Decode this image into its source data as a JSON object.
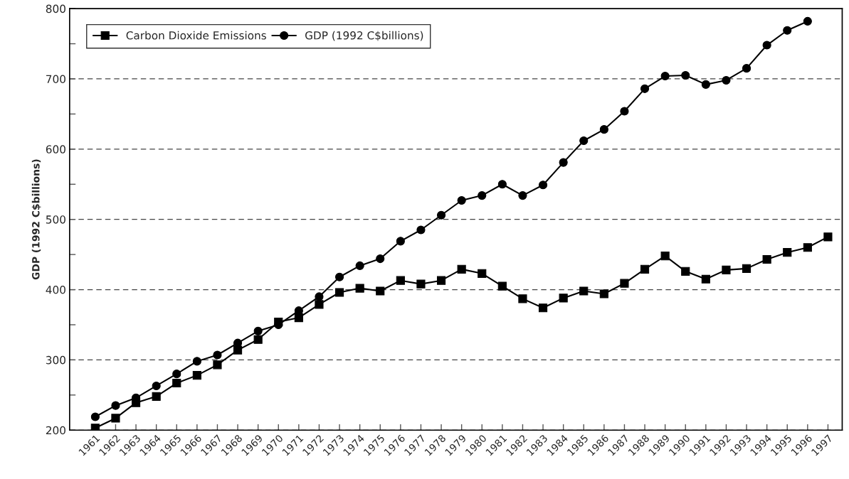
{
  "chart_data": {
    "type": "line",
    "ylabel": "GDP (1992 C$billions)",
    "categories": [
      "1961",
      "1962",
      "1963",
      "1964",
      "1965",
      "1966",
      "1967",
      "1968",
      "1969",
      "1970",
      "1971",
      "1972",
      "1973",
      "1974",
      "1975",
      "1976",
      "1977",
      "1978",
      "1979",
      "1980",
      "1981",
      "1982",
      "1983",
      "1984",
      "1985",
      "1986",
      "1987",
      "1988",
      "1989",
      "1990",
      "1991",
      "1992",
      "1993",
      "1994",
      "1995",
      "1996",
      "1997"
    ],
    "series": [
      {
        "name": "Carbon Dioxide Emissions",
        "color": "#000000",
        "marker": "square",
        "values": [
          203,
          217,
          239,
          248,
          267,
          278,
          293,
          314,
          329,
          354,
          360,
          379,
          396,
          402,
          398,
          413,
          408,
          413,
          429,
          423,
          405,
          387,
          374,
          388,
          398,
          394,
          409,
          429,
          448,
          426,
          415,
          428,
          430,
          443,
          453,
          460,
          475
        ]
      },
      {
        "name": "GDP (1992 C$billions)",
        "color": "#000000",
        "marker": "circle",
        "values": [
          219,
          235,
          246,
          263,
          280,
          298,
          307,
          324,
          341,
          350,
          370,
          390,
          418,
          434,
          444,
          469,
          485,
          506,
          527,
          534,
          550,
          534,
          549,
          581,
          612,
          628,
          654,
          686,
          704,
          705,
          692,
          698,
          715,
          748,
          769,
          782,
          null
        ]
      }
    ],
    "ylim": [
      200,
      800
    ],
    "yticks": [
      200,
      {
        "value": 250,
        "label": null
      },
      300,
      {
        "value": 350,
        "label": null
      },
      400,
      {
        "value": 450,
        "label": null
      },
      500,
      {
        "value": 550,
        "label": null
      },
      600,
      {
        "value": 650,
        "label": null
      },
      700,
      {
        "value": 750,
        "label": null
      },
      800
    ],
    "grid": "y",
    "line_style": "solid",
    "legend": "top left"
  }
}
